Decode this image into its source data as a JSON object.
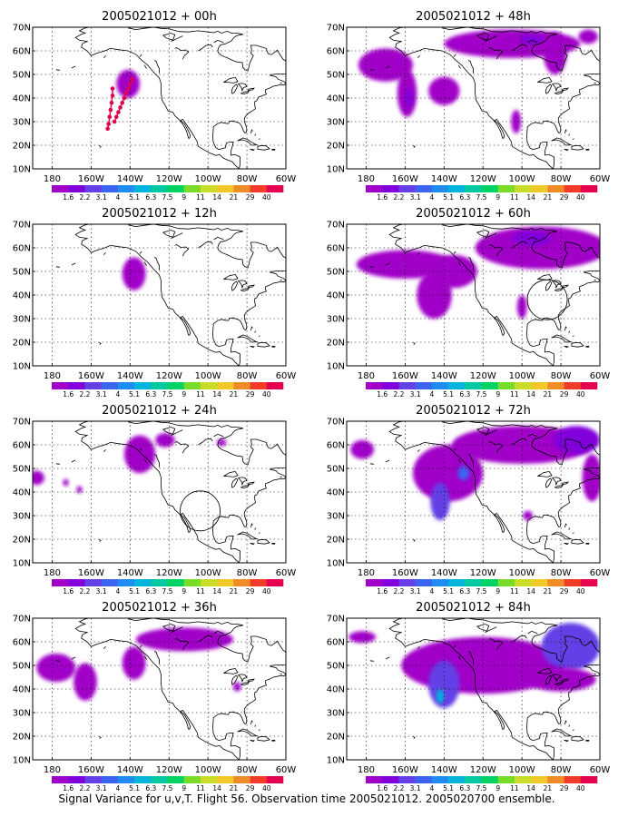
{
  "caption": "Signal Variance for u,v,T. Flight 56. Observation time 2005021012. 2005020700 ensemble.",
  "panels": [
    {
      "title": "2005021012 + 00h"
    },
    {
      "title": "2005021012 + 48h"
    },
    {
      "title": "2005021012 + 12h"
    },
    {
      "title": "2005021012 + 60h"
    },
    {
      "title": "2005021012 + 24h"
    },
    {
      "title": "2005021012 + 72h"
    },
    {
      "title": "2005021012 + 36h"
    },
    {
      "title": "2005021012 + 84h"
    }
  ],
  "axes": {
    "y_ticks": [
      "10N",
      "20N",
      "30N",
      "40N",
      "50N",
      "60N",
      "70N"
    ],
    "x_ticks": [
      "180",
      "160W",
      "140W",
      "120W",
      "100W",
      "80W",
      "60W"
    ],
    "lat_range": [
      10,
      70
    ],
    "lon_range": [
      -190,
      -60
    ],
    "grid": true
  },
  "colorbar": {
    "labels": [
      "1.6",
      "2.2",
      "3.1",
      "4",
      "5.1",
      "6.3",
      "7.5",
      "9",
      "11",
      "14",
      "21",
      "29",
      "40"
    ],
    "colors": [
      "#a000c8",
      "#8200dc",
      "#6440e6",
      "#3c64f0",
      "#1e8cf0",
      "#00b4dc",
      "#00c8a0",
      "#00d264",
      "#78dc28",
      "#c8dc28",
      "#f0c828",
      "#f08c28",
      "#f03c28",
      "#e60050"
    ]
  },
  "chart_data": {
    "type": "heatmap",
    "title": "Signal Variance for u,v,T. Flight 56. Observation time 2005021012. 2005020700 ensemble.",
    "variable": "signal variance (u, v, T)",
    "levels": [
      1.6,
      2.2,
      3.1,
      4,
      5.1,
      6.3,
      7.5,
      9,
      11,
      14,
      21,
      29,
      40
    ],
    "grid": true,
    "panels": [
      {
        "forecast_hour": 0,
        "observations": [
          {
            "lon": -149,
            "lat": 44
          },
          {
            "lon": -149,
            "lat": 41
          },
          {
            "lon": -149.5,
            "lat": 38
          },
          {
            "lon": -150,
            "lat": 35
          },
          {
            "lon": -150.5,
            "lat": 32
          },
          {
            "lon": -151,
            "lat": 29
          },
          {
            "lon": -151.5,
            "lat": 27
          },
          {
            "lon": -139,
            "lat": 48
          },
          {
            "lon": -140,
            "lat": 46
          },
          {
            "lon": -141,
            "lat": 44
          },
          {
            "lon": -142,
            "lat": 42
          },
          {
            "lon": -143,
            "lat": 40
          },
          {
            "lon": -144,
            "lat": 38
          },
          {
            "lon": -145,
            "lat": 36
          },
          {
            "lon": -146,
            "lat": 34
          },
          {
            "lon": -147,
            "lat": 32
          },
          {
            "lon": -148,
            "lat": 30
          }
        ],
        "regions": [
          {
            "lon": -141,
            "lat": 46,
            "rx": 6,
            "ry": 6,
            "level": 0
          }
        ]
      },
      {
        "forecast_hour": 48,
        "regions": [
          {
            "lon": -170,
            "lat": 54,
            "rx": 14,
            "ry": 7,
            "level": 0
          },
          {
            "lon": -159,
            "lat": 42,
            "rx": 5,
            "ry": 10,
            "level": 0
          },
          {
            "lon": -158,
            "lat": 40,
            "rx": 2,
            "ry": 4,
            "level": 1
          },
          {
            "lon": -140,
            "lat": 43,
            "rx": 8,
            "ry": 6,
            "level": 0
          },
          {
            "lon": -105,
            "lat": 63,
            "rx": 35,
            "ry": 6,
            "level": 0
          },
          {
            "lon": -95,
            "lat": 65,
            "rx": 6,
            "ry": 2,
            "level": 1
          },
          {
            "lon": -83,
            "lat": 59,
            "rx": 6,
            "ry": 9,
            "level": 0
          },
          {
            "lon": -66,
            "lat": 66,
            "rx": 5,
            "ry": 3,
            "level": 0
          },
          {
            "lon": -103,
            "lat": 30,
            "rx": 2.5,
            "ry": 5,
            "level": 0
          }
        ]
      },
      {
        "forecast_hour": 12,
        "regions": [
          {
            "lon": -138,
            "lat": 49,
            "rx": 6,
            "ry": 7,
            "level": 0
          }
        ]
      },
      {
        "forecast_hour": 60,
        "regions": [
          {
            "lon": -160,
            "lat": 53,
            "rx": 25,
            "ry": 6,
            "level": 0
          },
          {
            "lon": -145,
            "lat": 40,
            "rx": 9,
            "ry": 10,
            "level": 0
          },
          {
            "lon": -135,
            "lat": 50,
            "rx": 12,
            "ry": 7,
            "level": 0
          },
          {
            "lon": -90,
            "lat": 60,
            "rx": 34,
            "ry": 9,
            "level": 0
          },
          {
            "lon": -95,
            "lat": 64,
            "rx": 10,
            "ry": 3,
            "level": 1
          },
          {
            "lon": -100,
            "lat": 35,
            "rx": 2.5,
            "ry": 5,
            "level": 0
          }
        ]
      },
      {
        "forecast_hour": 24,
        "regions": [
          {
            "lon": -135,
            "lat": 56,
            "rx": 8,
            "ry": 8,
            "level": 0
          },
          {
            "lon": -122,
            "lat": 62,
            "rx": 5,
            "ry": 3,
            "level": 0
          },
          {
            "lon": -188,
            "lat": 46,
            "rx": 4,
            "ry": 3,
            "level": 0
          },
          {
            "lon": -173,
            "lat": 44,
            "rx": 1.5,
            "ry": 1.5,
            "level": 0
          },
          {
            "lon": -166,
            "lat": 41,
            "rx": 1.5,
            "ry": 1.5,
            "level": 0
          },
          {
            "lon": -93,
            "lat": 61,
            "rx": 2.5,
            "ry": 1.5,
            "level": 0
          }
        ]
      },
      {
        "forecast_hour": 72,
        "regions": [
          {
            "lon": -182,
            "lat": 58,
            "rx": 6,
            "ry": 4,
            "level": 0
          },
          {
            "lon": -138,
            "lat": 48,
            "rx": 18,
            "ry": 12,
            "level": 0
          },
          {
            "lon": -142,
            "lat": 36,
            "rx": 5,
            "ry": 8,
            "level": 2
          },
          {
            "lon": -130,
            "lat": 48,
            "rx": 3,
            "ry": 3,
            "level": 3
          },
          {
            "lon": -100,
            "lat": 60,
            "rx": 36,
            "ry": 8,
            "level": 0
          },
          {
            "lon": -72,
            "lat": 62,
            "rx": 12,
            "ry": 6,
            "level": 1
          },
          {
            "lon": -64,
            "lat": 46,
            "rx": 5,
            "ry": 10,
            "level": 0
          },
          {
            "lon": -97,
            "lat": 30,
            "rx": 2.5,
            "ry": 2,
            "level": 0
          }
        ]
      },
      {
        "forecast_hour": 36,
        "regions": [
          {
            "lon": -178,
            "lat": 49,
            "rx": 10,
            "ry": 6,
            "level": 0
          },
          {
            "lon": -163,
            "lat": 43,
            "rx": 6,
            "ry": 8,
            "level": 0
          },
          {
            "lon": -138,
            "lat": 51,
            "rx": 6,
            "ry": 7,
            "level": 0
          },
          {
            "lon": -112,
            "lat": 61,
            "rx": 25,
            "ry": 5,
            "level": 0
          },
          {
            "lon": -85,
            "lat": 41,
            "rx": 2,
            "ry": 2,
            "level": 0
          }
        ]
      },
      {
        "forecast_hour": 84,
        "regions": [
          {
            "lon": -182,
            "lat": 62,
            "rx": 7,
            "ry": 2.5,
            "level": 0
          },
          {
            "lon": -120,
            "lat": 50,
            "rx": 42,
            "ry": 12,
            "level": 0
          },
          {
            "lon": -140,
            "lat": 42,
            "rx": 8,
            "ry": 10,
            "level": 2
          },
          {
            "lon": -142,
            "lat": 37,
            "rx": 2,
            "ry": 3,
            "level": 5
          },
          {
            "lon": -75,
            "lat": 58,
            "rx": 15,
            "ry": 10,
            "level": 2
          },
          {
            "lon": -80,
            "lat": 44,
            "rx": 18,
            "ry": 5,
            "level": 0
          }
        ]
      }
    ]
  }
}
